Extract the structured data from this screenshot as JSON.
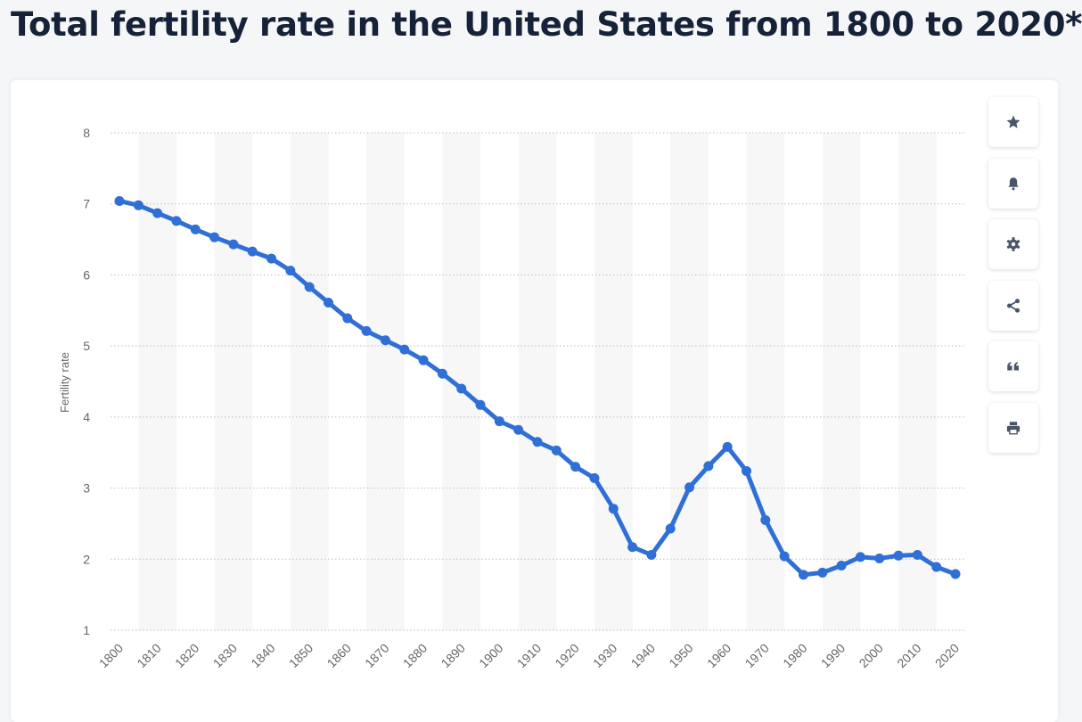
{
  "page": {
    "title": "Total fertility rate in the United States from 1800 to 2020*"
  },
  "toolbar": {
    "buttons": [
      {
        "name": "favorite-button",
        "icon": "star-icon"
      },
      {
        "name": "notification-button",
        "icon": "bell-icon"
      },
      {
        "name": "settings-button",
        "icon": "gear-icon"
      },
      {
        "name": "share-button",
        "icon": "share-icon"
      },
      {
        "name": "cite-button",
        "icon": "quote-icon"
      },
      {
        "name": "print-button",
        "icon": "printer-icon"
      }
    ],
    "icon_color": "#4a5568"
  },
  "chart_data": {
    "type": "line",
    "title": "",
    "xlabel": "",
    "ylabel": "Fertility rate",
    "ylim": [
      1,
      8
    ],
    "yticks": [
      1,
      2,
      3,
      4,
      5,
      6,
      7,
      8
    ],
    "xticks": [
      "1800",
      "1810",
      "1820",
      "1830",
      "1840",
      "1850",
      "1860",
      "1870",
      "1880",
      "1890",
      "1900",
      "1910",
      "1920",
      "1930",
      "1940",
      "1950",
      "1960",
      "1970",
      "1980",
      "1990",
      "2000",
      "2010",
      "2020"
    ],
    "grid": true,
    "legend": "none",
    "line_color": "#2f6fd6",
    "x": [
      1800,
      1805,
      1810,
      1815,
      1820,
      1825,
      1830,
      1835,
      1840,
      1845,
      1850,
      1855,
      1860,
      1865,
      1870,
      1875,
      1880,
      1885,
      1890,
      1895,
      1900,
      1905,
      1910,
      1915,
      1920,
      1925,
      1930,
      1935,
      1940,
      1945,
      1950,
      1955,
      1960,
      1965,
      1970,
      1975,
      1980,
      1985,
      1990,
      1995,
      2000,
      2005,
      2010,
      2015,
      2020
    ],
    "values": [
      7.04,
      6.98,
      6.87,
      6.76,
      6.64,
      6.53,
      6.43,
      6.33,
      6.23,
      6.06,
      5.83,
      5.61,
      5.39,
      5.21,
      5.08,
      4.95,
      4.8,
      4.61,
      4.4,
      4.17,
      3.94,
      3.82,
      3.65,
      3.53,
      3.3,
      3.14,
      2.71,
      2.17,
      2.06,
      2.43,
      3.01,
      3.31,
      3.58,
      3.24,
      2.55,
      2.04,
      1.78,
      1.81,
      1.91,
      2.03,
      2.01,
      2.05,
      2.06,
      1.89,
      1.79
    ]
  }
}
